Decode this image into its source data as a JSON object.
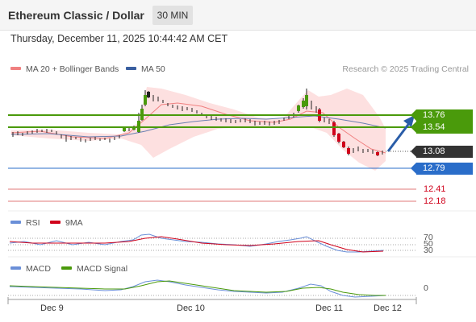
{
  "header": {
    "title": "Ethereum Classic / Dollar",
    "timeframe": "30 MIN"
  },
  "datetime": "Thursday, December 11, 2025 10:44:42 AM CET",
  "legend_main": {
    "ma20": "MA 20 + Bollinger Bands",
    "ma50": "MA 50",
    "ma20_color": "#f08080",
    "ma50_color": "#3a5fa0"
  },
  "research": "Research © 2025 Trading Central",
  "levels": {
    "r2": "13.76",
    "r1": "13.54",
    "last": "13.08",
    "s1": "12.79",
    "s2": "12.41",
    "s3": "12.18"
  },
  "colors": {
    "resistance": "#4a9a0b",
    "support": "#2a6dc9",
    "last": "#333333",
    "support_red": "#d0021b"
  },
  "rsi_panel": {
    "legend_rsi": "RSI",
    "legend_ma": "9MA",
    "levels": [
      "70",
      "50",
      "30"
    ]
  },
  "macd_panel": {
    "legend_macd": "MACD",
    "legend_signal": "MACD Signal",
    "zero": "0"
  },
  "x_axis": [
    "Dec 9",
    "Dec 10",
    "Dec 11",
    "Dec 12"
  ]
}
